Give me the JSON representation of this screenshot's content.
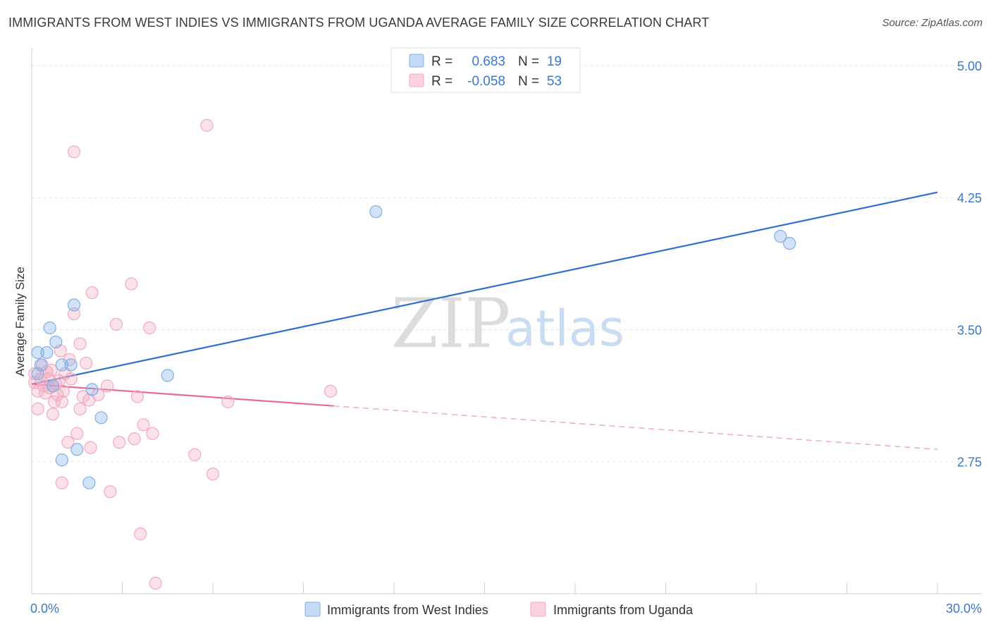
{
  "header": {
    "title": "IMMIGRANTS FROM WEST INDIES VS IMMIGRANTS FROM UGANDA AVERAGE FAMILY SIZE CORRELATION CHART",
    "source": "Source: ZipAtlas.com"
  },
  "watermark": {
    "zip": "ZIP",
    "atlas": "atlas"
  },
  "stats": [
    {
      "r_label": "R =",
      "r_value": "0.683",
      "n_label": "N =",
      "n_value": "19",
      "color": "#7fb0e8"
    },
    {
      "r_label": "R =",
      "r_value": "-0.058",
      "n_label": "N =",
      "n_value": "53",
      "color": "#f4a9c1"
    }
  ],
  "chart_data": {
    "type": "scatter",
    "title": "IMMIGRANTS FROM WEST INDIES VS IMMIGRANTS FROM UGANDA AVERAGE FAMILY SIZE CORRELATION CHART",
    "xlabel": "",
    "ylabel": "Average Family Size",
    "xlim": [
      0,
      30
    ],
    "ylim": [
      2.0,
      5.1
    ],
    "x_tick_labels": [
      "0.0%",
      "30.0%"
    ],
    "y_ticks": [
      2.75,
      3.5,
      4.25,
      5.0
    ],
    "y_tick_labels": [
      "2.75",
      "3.50",
      "4.25",
      "5.00"
    ],
    "grid": true,
    "legend_position": "bottom-center",
    "series": [
      {
        "name": "Immigrants from West Indies",
        "color": "#7fb0e8",
        "line_color": "#2f6fcc",
        "points": [
          [
            0.2,
            3.37
          ],
          [
            0.3,
            3.3
          ],
          [
            0.5,
            3.37
          ],
          [
            0.6,
            3.51
          ],
          [
            0.7,
            3.18
          ],
          [
            0.8,
            3.43
          ],
          [
            1.0,
            2.76
          ],
          [
            1.0,
            3.3
          ],
          [
            1.3,
            3.3
          ],
          [
            1.4,
            3.64
          ],
          [
            1.5,
            2.82
          ],
          [
            1.9,
            2.63
          ],
          [
            2.0,
            3.16
          ],
          [
            2.3,
            3.0
          ],
          [
            4.5,
            3.24
          ],
          [
            11.4,
            4.17
          ],
          [
            24.8,
            4.03
          ],
          [
            25.1,
            3.99
          ],
          [
            0.2,
            3.25
          ]
        ],
        "trend": {
          "x": [
            0,
            30
          ],
          "y": [
            3.19,
            4.28
          ],
          "dashed_from": null
        }
      },
      {
        "name": "Immigrants from Uganda",
        "color": "#f4a9c1",
        "line_color": "#e46c9a",
        "points": [
          [
            0.1,
            3.2
          ],
          [
            0.1,
            3.25
          ],
          [
            0.2,
            3.15
          ],
          [
            0.3,
            3.22
          ],
          [
            0.35,
            3.3
          ],
          [
            0.4,
            3.18
          ],
          [
            0.45,
            3.14
          ],
          [
            0.5,
            3.26
          ],
          [
            0.55,
            3.22
          ],
          [
            0.6,
            3.17
          ],
          [
            0.65,
            3.27
          ],
          [
            0.7,
            3.02
          ],
          [
            0.75,
            3.09
          ],
          [
            0.8,
            3.19
          ],
          [
            0.85,
            3.13
          ],
          [
            0.9,
            3.21
          ],
          [
            0.95,
            3.38
          ],
          [
            1.0,
            3.09
          ],
          [
            1.05,
            3.15
          ],
          [
            1.1,
            3.25
          ],
          [
            1.2,
            2.86
          ],
          [
            1.25,
            3.33
          ],
          [
            1.3,
            3.22
          ],
          [
            1.4,
            4.51
          ],
          [
            1.4,
            3.59
          ],
          [
            1.5,
            2.91
          ],
          [
            1.6,
            3.05
          ],
          [
            1.6,
            3.42
          ],
          [
            1.7,
            3.12
          ],
          [
            1.8,
            3.31
          ],
          [
            1.9,
            3.1
          ],
          [
            1.95,
            2.83
          ],
          [
            2.0,
            3.71
          ],
          [
            2.2,
            3.13
          ],
          [
            2.5,
            3.18
          ],
          [
            2.6,
            2.58
          ],
          [
            2.8,
            3.53
          ],
          [
            2.9,
            2.86
          ],
          [
            3.3,
            3.76
          ],
          [
            3.4,
            2.88
          ],
          [
            3.6,
            2.34
          ],
          [
            3.9,
            3.51
          ],
          [
            3.5,
            3.12
          ],
          [
            3.7,
            2.96
          ],
          [
            4.0,
            2.91
          ],
          [
            4.1,
            2.06
          ],
          [
            5.4,
            2.79
          ],
          [
            5.8,
            4.66
          ],
          [
            6.0,
            2.68
          ],
          [
            6.5,
            3.09
          ],
          [
            9.9,
            3.15
          ],
          [
            1.0,
            2.63
          ],
          [
            0.2,
            3.05
          ]
        ],
        "trend": {
          "x": [
            0,
            30
          ],
          "y": [
            3.19,
            2.82
          ],
          "dashed_from": 10
        }
      }
    ]
  },
  "legend": [
    {
      "label": "Immigrants from West Indies",
      "color": "#7fb0e8"
    },
    {
      "label": "Immigrants from Uganda",
      "color": "#f4a9c1"
    }
  ]
}
